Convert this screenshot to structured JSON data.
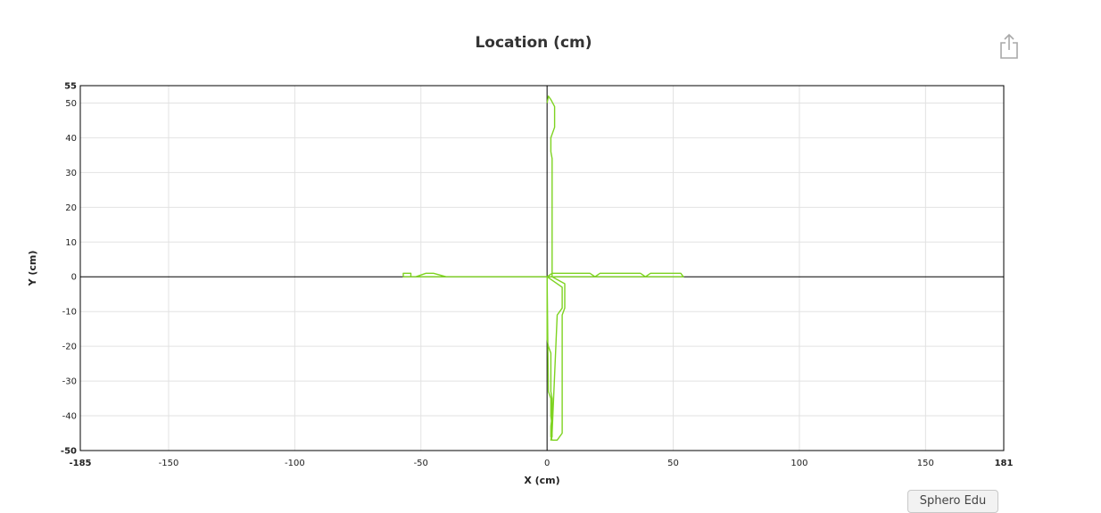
{
  "chart_data": {
    "type": "line",
    "title": "Location (cm)",
    "xlabel": "X (cm)",
    "ylabel": "Y (cm)",
    "xlim": [
      -185,
      181
    ],
    "ylim": [
      -50,
      55
    ],
    "x_ticks": [
      -185,
      -150,
      -100,
      -50,
      0,
      50,
      100,
      150,
      181
    ],
    "x_ticks_bold": [
      -185,
      181
    ],
    "y_ticks": [
      55,
      50,
      40,
      30,
      20,
      10,
      0,
      -10,
      -20,
      -30,
      -40,
      -50
    ],
    "y_ticks_bold": [
      55,
      -50
    ],
    "grid": true,
    "series": [
      {
        "color": "#7ed321",
        "x": [
          0,
          0.5,
          1.5,
          3,
          3,
          1.5,
          1.5,
          2,
          2,
          7,
          7,
          6,
          6,
          4,
          2,
          1.5,
          1.5,
          2,
          2,
          1.5,
          1.5,
          0.5,
          0,
          0,
          -40,
          -45,
          -48,
          -52,
          -54,
          -54,
          -57,
          -57,
          -54,
          -52,
          -48,
          -45,
          -40,
          0,
          2,
          6,
          6,
          4,
          2,
          1.5,
          1.5,
          2,
          2,
          1.5,
          1.5,
          0.5,
          0,
          2,
          17,
          19,
          21,
          37,
          39,
          41,
          53,
          54,
          53,
          41,
          39,
          37,
          21,
          19,
          17,
          -1
        ],
        "y": [
          50,
          52,
          51,
          49,
          43,
          40,
          36,
          34,
          0,
          -2,
          -9,
          -11,
          -45,
          -47,
          -47,
          -46,
          -43,
          -40,
          -35,
          -33,
          -22,
          -20,
          -18,
          0,
          0,
          1,
          1,
          0,
          0,
          1,
          1,
          0,
          0,
          0,
          0,
          0,
          0,
          0,
          -1,
          -3,
          -9,
          -11,
          -45,
          -47,
          -47,
          -46,
          -43,
          -40,
          -35,
          -33,
          0,
          1,
          1,
          0,
          1,
          1,
          0,
          1,
          1,
          0,
          0,
          0,
          0,
          0,
          0,
          0,
          0,
          0
        ]
      }
    ]
  },
  "toolbar": {
    "share_icon": "share-icon",
    "footer_button_label": "Sphero Edu"
  },
  "colors": {
    "series": "#7ed321",
    "grid": "#e2e2e2",
    "axis": "#000000"
  }
}
